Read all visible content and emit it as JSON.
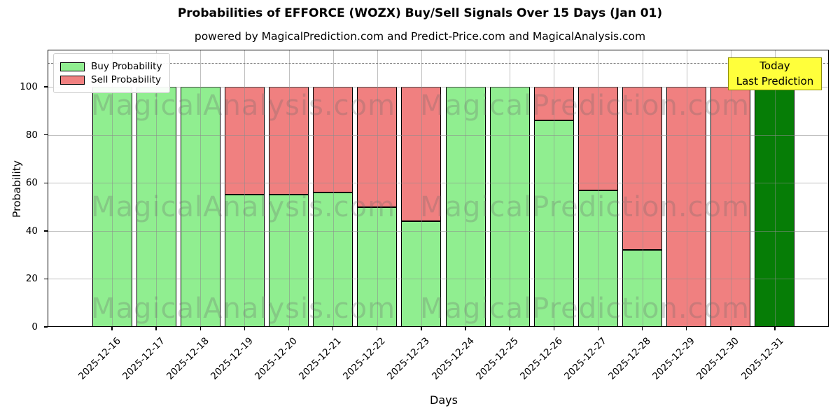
{
  "header": {
    "title": "Probabilities of EFFORCE (WOZX) Buy/Sell Signals Over 15 Days (Jan 01)",
    "subtitle": "powered by MagicalPrediction.com and Predict-Price.com and MagicalAnalysis.com"
  },
  "legend": {
    "items": [
      {
        "label": "Buy Probability",
        "color": "#90ee90"
      },
      {
        "label": "Sell Probability",
        "color": "#f08080"
      }
    ]
  },
  "today_box": {
    "line1": "Today",
    "line2": "Last Prediction",
    "bg_color": "#ffff3b",
    "border_color": "#8c8c00"
  },
  "watermark": {
    "left": "MagicalAnalysis.com",
    "right": "MagicalPrediction.com"
  },
  "axes": {
    "y_label": "Probability",
    "x_label": "Days"
  },
  "chart_data": {
    "type": "bar",
    "stacked": true,
    "categories": [
      "2025-12-16",
      "2025-12-17",
      "2025-12-18",
      "2025-12-19",
      "2025-12-20",
      "2025-12-21",
      "2025-12-22",
      "2025-12-23",
      "2025-12-24",
      "2025-12-25",
      "2025-12-26",
      "2025-12-27",
      "2025-12-28",
      "2025-12-29",
      "2025-12-30",
      "2025-12-31"
    ],
    "series": [
      {
        "name": "Buy Probability",
        "color": "#90ee90",
        "values": [
          100,
          100,
          100,
          55,
          55,
          56,
          50,
          44,
          100,
          100,
          86,
          57,
          32,
          0,
          0,
          100
        ]
      },
      {
        "name": "Sell Probability",
        "color": "#f08080",
        "values": [
          0,
          0,
          0,
          45,
          45,
          44,
          50,
          56,
          0,
          0,
          14,
          43,
          68,
          100,
          100,
          0
        ]
      }
    ],
    "today_index": 15,
    "today_color": "#067d06",
    "bar_edge_color": "#000000",
    "xlabel": "Days",
    "ylabel": "Probability",
    "ylim": [
      0,
      115.5
    ],
    "yticks": [
      0,
      20,
      40,
      60,
      80,
      100
    ],
    "dashed_line_y": 110,
    "grid": true,
    "legend_position": "upper left"
  }
}
